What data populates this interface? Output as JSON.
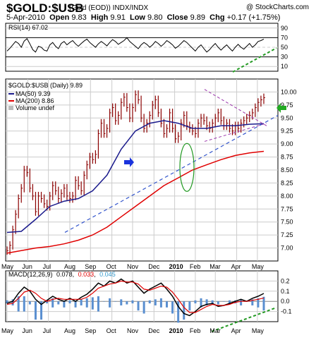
{
  "header": {
    "symbol": "$GOLD:$USB",
    "subtitle": "(Gold (EOD)) INDX/INDX",
    "brand": "@ StockCharts.com",
    "date": "5-Apr-2010",
    "open_label": "Open",
    "open": "9.83",
    "high_label": "High",
    "high": "9.91",
    "low_label": "Low",
    "low": "9.80",
    "close_label": "Close",
    "close": "9.89",
    "chg_label": "Chg",
    "chg": "+0.17 (+1.75%)"
  },
  "colors": {
    "price": "#8b0000",
    "ma50": "#1a1a8c",
    "ma200": "#e00000",
    "rsi": "#000000",
    "macd": "#000000",
    "signal": "#e00000",
    "histogram": "#5a8fd0",
    "trendline": "#3355cc",
    "wedge": "#9933aa",
    "annotation_green": "#229922",
    "grid": "#cccccc",
    "plot_bg": "#ffffff"
  },
  "chart_data": [
    {
      "type": "line",
      "panel": "rsi",
      "label": "RSI(14) 67.02",
      "ylim": [
        0,
        100
      ],
      "ticks": [
        "90",
        "70",
        "50",
        "30",
        "10"
      ],
      "tick_values": [
        90,
        70,
        50,
        30,
        10
      ],
      "overbought": 70,
      "oversold": 30,
      "x": [
        0,
        4,
        8,
        12,
        16,
        20,
        24,
        28,
        32,
        36,
        40,
        44,
        48,
        52,
        56,
        60,
        64,
        68,
        72,
        76,
        80,
        84,
        88,
        92,
        96,
        100,
        104,
        108,
        112,
        116,
        120,
        124,
        128,
        132,
        136,
        140,
        144,
        148,
        152,
        156,
        160,
        164,
        168,
        172,
        176,
        180,
        184,
        188,
        192,
        196,
        200,
        204,
        208,
        212,
        216,
        220,
        224,
        228,
        232,
        236,
        240,
        244,
        248,
        252,
        256,
        260,
        264,
        268,
        272,
        276,
        280,
        284,
        288,
        292,
        296,
        300,
        304,
        308,
        312,
        316,
        320,
        324,
        328,
        332,
        336,
        340,
        344,
        348,
        352,
        356,
        360
      ],
      "values": [
        42,
        48,
        55,
        62,
        58,
        50,
        63,
        68,
        57,
        45,
        40,
        52,
        50,
        44,
        42,
        55,
        60,
        52,
        47,
        58,
        62,
        55,
        60,
        64,
        57,
        52,
        58,
        63,
        67,
        60,
        55,
        50,
        57,
        62,
        58,
        53,
        60,
        66,
        62,
        56,
        60,
        64,
        70,
        62,
        57,
        52,
        47,
        55,
        60,
        56,
        50,
        55,
        62,
        58,
        52,
        57,
        64,
        60,
        55,
        48,
        52,
        58,
        64,
        60,
        54,
        48,
        42,
        50,
        55,
        47,
        40,
        45,
        52,
        58,
        50,
        44,
        50,
        55,
        48,
        42,
        50,
        56,
        50,
        46,
        52,
        58,
        50,
        55,
        62,
        64,
        67
      ]
    },
    {
      "type": "line",
      "panel": "price",
      "title": "$GOLD:$USB (Daily) 9.89",
      "ylim": [
        6.75,
        10.25
      ],
      "ticks": [
        "10.00",
        "9.75",
        "9.50",
        "9.25",
        "9.00",
        "8.75",
        "8.50",
        "8.25",
        "8.00",
        "7.75",
        "7.50",
        "7.25",
        "7.00"
      ],
      "tick_values": [
        10.0,
        9.75,
        9.5,
        9.25,
        9.0,
        8.75,
        8.5,
        8.25,
        8.0,
        7.75,
        7.5,
        7.25,
        7.0
      ],
      "x_months": [
        "May",
        "Jun",
        "Jul",
        "Aug",
        "Sep",
        "Oct",
        "Nov",
        "Dec",
        "2010",
        "Feb",
        "Mar",
        "Apr",
        "May"
      ],
      "month_x": [
        0,
        29,
        58,
        88,
        117,
        147,
        176,
        206,
        235,
        264,
        292,
        322,
        351
      ],
      "series": [
        {
          "name": "$GOLD:$USB (Daily) 9.89",
          "role": "price",
          "x": [
            0,
            4,
            8,
            12,
            16,
            20,
            24,
            28,
            32,
            36,
            40,
            44,
            48,
            52,
            56,
            60,
            64,
            68,
            72,
            76,
            80,
            84,
            88,
            92,
            96,
            100,
            104,
            108,
            112,
            116,
            120,
            124,
            128,
            132,
            136,
            140,
            144,
            148,
            152,
            156,
            160,
            164,
            168,
            172,
            176,
            180,
            184,
            188,
            192,
            196,
            200,
            204,
            208,
            212,
            216,
            220,
            224,
            228,
            232,
            236,
            240,
            244,
            248,
            252,
            256,
            260,
            264,
            268,
            272,
            276,
            280,
            284,
            288,
            292,
            296,
            300,
            304,
            308,
            312,
            316,
            320,
            324,
            328,
            332,
            336,
            340,
            344,
            348,
            352,
            356,
            360
          ],
          "values": [
            6.95,
            7.05,
            7.35,
            7.65,
            7.95,
            8.15,
            8.5,
            8.45,
            8.15,
            8.0,
            7.7,
            8.0,
            7.95,
            7.85,
            7.8,
            8.0,
            8.2,
            8.1,
            7.95,
            8.05,
            8.15,
            8.0,
            7.95,
            8.0,
            8.3,
            8.2,
            8.1,
            8.4,
            8.6,
            8.75,
            8.7,
            8.8,
            9.2,
            9.4,
            9.2,
            9.3,
            9.6,
            9.7,
            9.45,
            9.55,
            9.8,
            9.9,
            9.7,
            9.5,
            9.7,
            9.95,
            9.85,
            9.5,
            9.3,
            9.4,
            9.55,
            9.75,
            9.85,
            9.6,
            9.4,
            9.2,
            9.3,
            9.6,
            9.3,
            9.1,
            9.15,
            9.4,
            9.55,
            9.35,
            9.3,
            9.25,
            9.2,
            9.4,
            9.5,
            9.45,
            9.35,
            9.3,
            9.4,
            9.5,
            9.6,
            9.45,
            9.35,
            9.4,
            9.3,
            9.25,
            9.35,
            9.3,
            9.4,
            9.45,
            9.5,
            9.55,
            9.6,
            9.7,
            9.8,
            9.85,
            9.89
          ]
        },
        {
          "name": "MA(50) 9.39",
          "role": "ma50",
          "x": [
            0,
            20,
            40,
            60,
            80,
            100,
            120,
            140,
            160,
            180,
            200,
            220,
            240,
            260,
            280,
            300,
            320,
            340,
            360
          ],
          "values": [
            7.3,
            7.32,
            7.55,
            7.8,
            7.9,
            7.95,
            8.1,
            8.4,
            8.9,
            9.25,
            9.4,
            9.45,
            9.4,
            9.3,
            9.3,
            9.35,
            9.35,
            9.38,
            9.39
          ]
        },
        {
          "name": "MA(200) 8.86",
          "role": "ma200",
          "x": [
            0,
            20,
            40,
            60,
            80,
            100,
            120,
            140,
            160,
            180,
            200,
            220,
            240,
            260,
            280,
            300,
            320,
            340,
            360
          ],
          "values": [
            6.9,
            6.95,
            7.0,
            7.03,
            7.08,
            7.15,
            7.25,
            7.4,
            7.6,
            7.8,
            8.0,
            8.2,
            8.35,
            8.5,
            8.6,
            8.7,
            8.78,
            8.83,
            8.86
          ]
        },
        {
          "name": "Volume undef",
          "role": "volume",
          "values": []
        }
      ]
    },
    {
      "type": "line",
      "panel": "macd",
      "label_prefix": "MACD(12,26,9)",
      "macd_value": "0.078",
      "signal_value": "0.033",
      "hist_value": "0.045",
      "ylim": [
        -0.2,
        0.3
      ],
      "ticks": [
        "0.2",
        "0.1",
        "0.0",
        "-0.1"
      ],
      "tick_values": [
        0.2,
        0.1,
        0.0,
        -0.1
      ],
      "x": [
        0,
        8,
        16,
        24,
        32,
        40,
        48,
        56,
        64,
        72,
        80,
        88,
        96,
        104,
        112,
        120,
        128,
        136,
        144,
        152,
        160,
        168,
        176,
        184,
        192,
        200,
        208,
        216,
        224,
        232,
        240,
        248,
        256,
        264,
        272,
        280,
        288,
        296,
        304,
        312,
        320,
        328,
        336,
        344,
        352,
        360
      ],
      "macd": [
        -0.02,
        0.0,
        0.08,
        0.14,
        0.1,
        0.02,
        -0.03,
        0.01,
        0.05,
        0.02,
        0.0,
        0.03,
        0.0,
        0.04,
        0.07,
        0.12,
        0.18,
        0.15,
        0.2,
        0.18,
        0.22,
        0.18,
        0.2,
        0.14,
        0.08,
        0.12,
        0.15,
        0.18,
        0.12,
        0.05,
        -0.05,
        -0.12,
        -0.14,
        -0.1,
        -0.05,
        -0.03,
        -0.02,
        -0.05,
        -0.04,
        -0.02,
        0.0,
        0.02,
        0.0,
        0.03,
        0.05,
        0.078
      ],
      "signal": [
        -0.03,
        -0.02,
        0.03,
        0.09,
        0.11,
        0.08,
        0.03,
        0.0,
        0.02,
        0.03,
        0.02,
        0.02,
        0.02,
        0.02,
        0.04,
        0.08,
        0.13,
        0.15,
        0.17,
        0.18,
        0.2,
        0.19,
        0.19,
        0.17,
        0.12,
        0.11,
        0.13,
        0.15,
        0.14,
        0.09,
        0.02,
        -0.06,
        -0.11,
        -0.11,
        -0.08,
        -0.05,
        -0.03,
        -0.04,
        -0.04,
        -0.03,
        -0.01,
        0.0,
        0.0,
        0.01,
        0.02,
        0.033
      ]
    }
  ],
  "annotations": {
    "blue_arrow": "arrow-right",
    "green_arrow": "arrow-left",
    "oval": "ellipse",
    "dashed_trendline": "support",
    "wedge_lines": "wedge"
  }
}
